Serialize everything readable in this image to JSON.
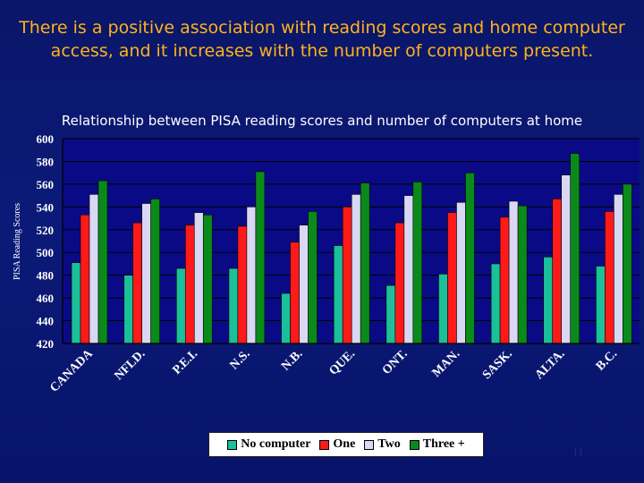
{
  "slide": {
    "headline": "There is a positive association with reading scores and home computer access, and it increases with the number of computers present.",
    "page_number": "11"
  },
  "chart_data": {
    "type": "bar",
    "title": "Relationship between PISA reading scores and number of computers at home",
    "xlabel": "",
    "ylabel": "PISA Reading Scores",
    "ylim": [
      420,
      600
    ],
    "yticks": [
      420,
      440,
      460,
      480,
      500,
      520,
      540,
      560,
      580,
      600
    ],
    "grid": true,
    "legend_position": "bottom",
    "categories": [
      "CANADA",
      "NFLD.",
      "P.E.I.",
      "N.S.",
      "N.B.",
      "QUE.",
      "ONT.",
      "MAN.",
      "SASK.",
      "ALTA.",
      "B.C."
    ],
    "series": [
      {
        "name": "No computer",
        "color": "#1bbf9a",
        "values": [
          491,
          480,
          486,
          486,
          464,
          506,
          471,
          481,
          490,
          496,
          488
        ]
      },
      {
        "name": "One",
        "color": "#ff1a1a",
        "values": [
          533,
          526,
          524,
          523,
          509,
          540,
          526,
          535,
          531,
          547,
          536
        ]
      },
      {
        "name": "Two",
        "color": "#d8d8f4",
        "values": [
          551,
          543,
          535,
          540,
          524,
          551,
          550,
          544,
          545,
          568,
          551
        ]
      },
      {
        "name": "Three +",
        "color": "#0a8a1a",
        "values": [
          563,
          547,
          533,
          571,
          536,
          561,
          562,
          570,
          541,
          587,
          560
        ]
      }
    ],
    "colors": {
      "plot_background": "#0a0a86",
      "grid": "#000000",
      "axis_text": "#ffffff"
    }
  }
}
